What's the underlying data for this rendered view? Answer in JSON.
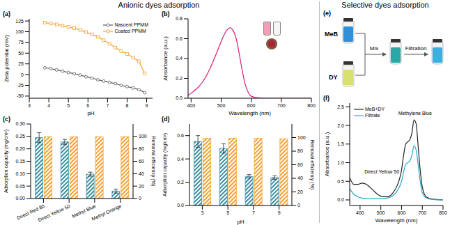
{
  "titles": [
    "Anionic dyes adsorption",
    "Selective dyes adsorption"
  ],
  "chart_data": [
    {
      "label": "(a)",
      "type": "line",
      "x_label": "pH",
      "y_label": "Zeta potential (mV)",
      "x": [
        3.8,
        4.1,
        4.4,
        4.7,
        5,
        5.3,
        5.6,
        5.9,
        6.2,
        6.5,
        6.8,
        7.1,
        7.4,
        7.7,
        8,
        8.3,
        8.6,
        8.9
      ],
      "xlim": [
        3,
        9.3
      ],
      "xticks": [
        3,
        4,
        5,
        6,
        7,
        8,
        9
      ],
      "ylim": [
        -55,
        130
      ],
      "yticks": [
        -50,
        -25,
        0,
        25,
        50,
        75,
        100,
        125
      ],
      "legend": "upper right",
      "series": [
        {
          "name": "Nascent PPMM",
          "color": "#555555",
          "marker": "circle",
          "values": [
            16,
            14,
            11,
            8,
            5,
            2,
            -1,
            -5,
            -8,
            -12,
            -15,
            -18,
            -21,
            -25,
            -28,
            -31,
            -35,
            -42
          ]
        },
        {
          "name": "Coated PPMM",
          "color": "#f0a030",
          "marker": "square",
          "values": [
            121,
            119,
            117,
            114,
            111,
            108,
            104,
            99,
            94,
            88,
            80,
            72,
            63,
            55,
            48,
            40,
            31,
            3
          ]
        }
      ]
    },
    {
      "label": "(b)",
      "type": "line",
      "x_label": "Wavelength (nm)",
      "y_label": "Absorbance (a.u.)",
      "x": [
        390,
        400,
        420,
        440,
        460,
        480,
        500,
        510,
        520,
        530,
        540,
        550,
        560,
        570,
        580,
        590,
        600,
        620,
        650,
        700,
        750,
        800
      ],
      "values": [
        0.03,
        0.05,
        0.1,
        0.17,
        0.28,
        0.42,
        0.57,
        0.64,
        0.69,
        0.71,
        0.68,
        0.6,
        0.45,
        0.28,
        0.14,
        0.06,
        0.02,
        0.005,
        0,
        0,
        0,
        0
      ],
      "color": "#d81b7a",
      "xlim": [
        390,
        800
      ],
      "xticks": [
        400,
        500,
        600,
        700,
        800
      ],
      "ylim": [
        0,
        0.8
      ],
      "yticks": [
        {
          "value": 0,
          "label": "0.0"
        },
        {
          "value": 0.2,
          "label": "0.2"
        },
        {
          "value": 0.4,
          "label": "0.4"
        },
        {
          "value": 0.6,
          "label": "0.6"
        },
        {
          "value": 0.8,
          "label": "0.8"
        }
      ]
    },
    {
      "label": "(c)",
      "type": "bar",
      "categories": [
        "Direct Red 80",
        "Direct Yellow 50",
        "Methyl Blue",
        "Methyl Orange"
      ],
      "y_label": "Adsorption capacity (mg/cm²)",
      "y2_label": "Removal efficiency (%)",
      "ylim": [
        0,
        0.3
      ],
      "yticks": [
        {
          "value": 0,
          "label": "0.00"
        },
        {
          "value": 0.05,
          "label": "0.05"
        },
        {
          "value": 0.1,
          "label": "0.10"
        },
        {
          "value": 0.15,
          "label": "0.15"
        },
        {
          "value": 0.2,
          "label": "0.20"
        },
        {
          "value": 0.25,
          "label": "0.25"
        },
        {
          "value": 0.3,
          "label": "0.30"
        }
      ],
      "y2lim": [
        0,
        120
      ],
      "y2ticks": [
        0,
        20,
        40,
        60,
        80,
        100
      ],
      "series": [
        {
          "color": "#3b8fa3",
          "values": [
            0.245,
            0.228,
            0.098,
            0.03
          ],
          "errors": [
            0.02,
            0.01,
            0.008,
            0.008
          ]
        },
        {
          "color": "#f5a030",
          "axis": "y2",
          "values": [
            99.5,
            99.5,
            99.5,
            99.5
          ]
        }
      ]
    },
    {
      "label": "(d)",
      "type": "bar",
      "categories": [
        3,
        5,
        7,
        9
      ],
      "x_label": "pH",
      "y_label": "Adsorption capacity (mg/cm²)",
      "y2_label": "Removal efficiency (%)",
      "ylim": [
        0,
        0.7
      ],
      "yticks": [
        {
          "value": 0,
          "label": "0.0"
        },
        {
          "value": 0.2,
          "label": "0.2"
        },
        {
          "value": 0.4,
          "label": "0.4"
        },
        {
          "value": 0.6,
          "label": "0.6"
        }
      ],
      "y2lim": [
        0,
        120
      ],
      "y2ticks": [
        0,
        20,
        40,
        60,
        80,
        100
      ],
      "series": [
        {
          "color": "#3b8fa3",
          "values": [
            0.55,
            0.49,
            0.25,
            0.24
          ],
          "errors": [
            0.05,
            0.04,
            0.015,
            0.015
          ]
        },
        {
          "color": "#f5a030",
          "axis": "y2",
          "values": [
            99,
            99,
            99,
            98
          ]
        }
      ]
    },
    {
      "label": "(f)",
      "type": "line",
      "x_label": "Wavelength (nm)",
      "y_label": "Absorbance (a.u.)",
      "x": [
        350,
        370,
        390,
        410,
        430,
        450,
        470,
        500,
        530,
        560,
        580,
        600,
        610,
        620,
        630,
        640,
        650,
        660,
        670,
        680,
        690,
        700,
        720,
        750,
        800
      ],
      "xlim": [
        350,
        800
      ],
      "xticks": [
        400,
        500,
        600,
        700,
        800
      ],
      "ylim": [
        -0.15,
        2.6
      ],
      "yticks": [
        {
          "value": 0,
          "label": "0.0"
        },
        {
          "value": 0.5,
          "label": "0.5"
        },
        {
          "value": 1,
          "label": "1.0"
        },
        {
          "value": 1.5,
          "label": "1.5"
        },
        {
          "value": 2,
          "label": "2.0"
        },
        {
          "value": 2.5,
          "label": "2.5"
        }
      ],
      "legend": "upper left",
      "series": [
        {
          "name": "MeB+DY",
          "color": "#222222",
          "values": [
            0.6,
            0.42,
            0.42,
            0.45,
            0.42,
            0.33,
            0.22,
            0.1,
            0.08,
            0.2,
            0.4,
            0.8,
            1.2,
            1.5,
            1.56,
            1.62,
            1.8,
            2.15,
            2.05,
            1.45,
            0.8,
            0.35,
            0.08,
            0.02,
            0
          ]
        },
        {
          "name": "Filtrate",
          "color": "#29a9c9",
          "values": [
            0.3,
            0.15,
            0.08,
            0.05,
            0.04,
            0.03,
            0.03,
            0.03,
            0.05,
            0.12,
            0.25,
            0.5,
            0.75,
            0.95,
            1,
            1.05,
            1.2,
            1.45,
            1.35,
            0.95,
            0.5,
            0.2,
            0.05,
            0.01,
            0
          ]
        }
      ],
      "annotations": [
        {
          "text": "Direct Yellow 50",
          "x": 415,
          "y": 0.75
        },
        {
          "text": "Methylene Blue",
          "x": 665,
          "y": 2.25
        }
      ]
    }
  ],
  "diagram": {
    "label": "(e)",
    "inputs": [
      "MeB",
      "DY"
    ],
    "steps": [
      "Mix",
      "Filtration"
    ]
  }
}
